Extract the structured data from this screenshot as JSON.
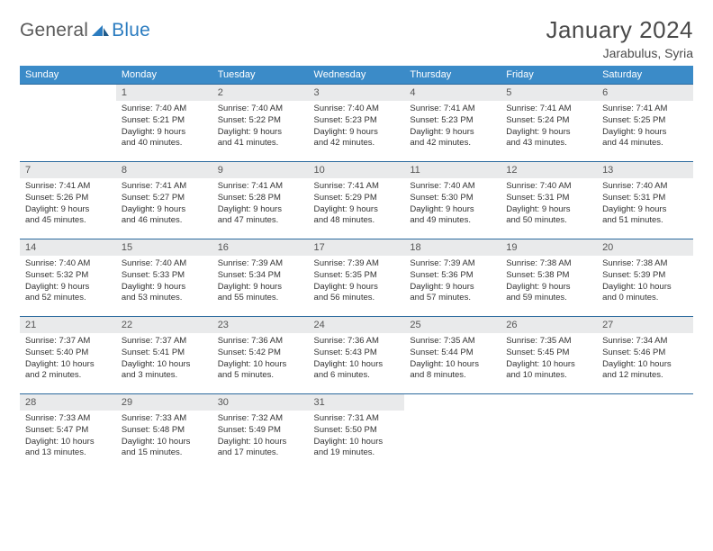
{
  "brand": {
    "part1": "General",
    "part2": "Blue"
  },
  "title": "January 2024",
  "location": "Jarabulus, Syria",
  "colors": {
    "header_bg": "#3b8bc8",
    "header_text": "#ffffff",
    "daynum_bg": "#e9eaeb",
    "row_border": "#2b6a9e",
    "brand_gray": "#5a5a5a",
    "brand_blue": "#2b7cc0",
    "text": "#333333",
    "page_bg": "#ffffff"
  },
  "typography": {
    "title_fontsize": 26,
    "location_fontsize": 14,
    "header_fontsize": 11,
    "daynum_fontsize": 11,
    "body_fontsize": 9.5
  },
  "weekdays": [
    "Sunday",
    "Monday",
    "Tuesday",
    "Wednesday",
    "Thursday",
    "Friday",
    "Saturday"
  ],
  "weeks": [
    [
      {
        "n": "",
        "lines": []
      },
      {
        "n": "1",
        "lines": [
          "Sunrise: 7:40 AM",
          "Sunset: 5:21 PM",
          "Daylight: 9 hours",
          "and 40 minutes."
        ]
      },
      {
        "n": "2",
        "lines": [
          "Sunrise: 7:40 AM",
          "Sunset: 5:22 PM",
          "Daylight: 9 hours",
          "and 41 minutes."
        ]
      },
      {
        "n": "3",
        "lines": [
          "Sunrise: 7:40 AM",
          "Sunset: 5:23 PM",
          "Daylight: 9 hours",
          "and 42 minutes."
        ]
      },
      {
        "n": "4",
        "lines": [
          "Sunrise: 7:41 AM",
          "Sunset: 5:23 PM",
          "Daylight: 9 hours",
          "and 42 minutes."
        ]
      },
      {
        "n": "5",
        "lines": [
          "Sunrise: 7:41 AM",
          "Sunset: 5:24 PM",
          "Daylight: 9 hours",
          "and 43 minutes."
        ]
      },
      {
        "n": "6",
        "lines": [
          "Sunrise: 7:41 AM",
          "Sunset: 5:25 PM",
          "Daylight: 9 hours",
          "and 44 minutes."
        ]
      }
    ],
    [
      {
        "n": "7",
        "lines": [
          "Sunrise: 7:41 AM",
          "Sunset: 5:26 PM",
          "Daylight: 9 hours",
          "and 45 minutes."
        ]
      },
      {
        "n": "8",
        "lines": [
          "Sunrise: 7:41 AM",
          "Sunset: 5:27 PM",
          "Daylight: 9 hours",
          "and 46 minutes."
        ]
      },
      {
        "n": "9",
        "lines": [
          "Sunrise: 7:41 AM",
          "Sunset: 5:28 PM",
          "Daylight: 9 hours",
          "and 47 minutes."
        ]
      },
      {
        "n": "10",
        "lines": [
          "Sunrise: 7:41 AM",
          "Sunset: 5:29 PM",
          "Daylight: 9 hours",
          "and 48 minutes."
        ]
      },
      {
        "n": "11",
        "lines": [
          "Sunrise: 7:40 AM",
          "Sunset: 5:30 PM",
          "Daylight: 9 hours",
          "and 49 minutes."
        ]
      },
      {
        "n": "12",
        "lines": [
          "Sunrise: 7:40 AM",
          "Sunset: 5:31 PM",
          "Daylight: 9 hours",
          "and 50 minutes."
        ]
      },
      {
        "n": "13",
        "lines": [
          "Sunrise: 7:40 AM",
          "Sunset: 5:31 PM",
          "Daylight: 9 hours",
          "and 51 minutes."
        ]
      }
    ],
    [
      {
        "n": "14",
        "lines": [
          "Sunrise: 7:40 AM",
          "Sunset: 5:32 PM",
          "Daylight: 9 hours",
          "and 52 minutes."
        ]
      },
      {
        "n": "15",
        "lines": [
          "Sunrise: 7:40 AM",
          "Sunset: 5:33 PM",
          "Daylight: 9 hours",
          "and 53 minutes."
        ]
      },
      {
        "n": "16",
        "lines": [
          "Sunrise: 7:39 AM",
          "Sunset: 5:34 PM",
          "Daylight: 9 hours",
          "and 55 minutes."
        ]
      },
      {
        "n": "17",
        "lines": [
          "Sunrise: 7:39 AM",
          "Sunset: 5:35 PM",
          "Daylight: 9 hours",
          "and 56 minutes."
        ]
      },
      {
        "n": "18",
        "lines": [
          "Sunrise: 7:39 AM",
          "Sunset: 5:36 PM",
          "Daylight: 9 hours",
          "and 57 minutes."
        ]
      },
      {
        "n": "19",
        "lines": [
          "Sunrise: 7:38 AM",
          "Sunset: 5:38 PM",
          "Daylight: 9 hours",
          "and 59 minutes."
        ]
      },
      {
        "n": "20",
        "lines": [
          "Sunrise: 7:38 AM",
          "Sunset: 5:39 PM",
          "Daylight: 10 hours",
          "and 0 minutes."
        ]
      }
    ],
    [
      {
        "n": "21",
        "lines": [
          "Sunrise: 7:37 AM",
          "Sunset: 5:40 PM",
          "Daylight: 10 hours",
          "and 2 minutes."
        ]
      },
      {
        "n": "22",
        "lines": [
          "Sunrise: 7:37 AM",
          "Sunset: 5:41 PM",
          "Daylight: 10 hours",
          "and 3 minutes."
        ]
      },
      {
        "n": "23",
        "lines": [
          "Sunrise: 7:36 AM",
          "Sunset: 5:42 PM",
          "Daylight: 10 hours",
          "and 5 minutes."
        ]
      },
      {
        "n": "24",
        "lines": [
          "Sunrise: 7:36 AM",
          "Sunset: 5:43 PM",
          "Daylight: 10 hours",
          "and 6 minutes."
        ]
      },
      {
        "n": "25",
        "lines": [
          "Sunrise: 7:35 AM",
          "Sunset: 5:44 PM",
          "Daylight: 10 hours",
          "and 8 minutes."
        ]
      },
      {
        "n": "26",
        "lines": [
          "Sunrise: 7:35 AM",
          "Sunset: 5:45 PM",
          "Daylight: 10 hours",
          "and 10 minutes."
        ]
      },
      {
        "n": "27",
        "lines": [
          "Sunrise: 7:34 AM",
          "Sunset: 5:46 PM",
          "Daylight: 10 hours",
          "and 12 minutes."
        ]
      }
    ],
    [
      {
        "n": "28",
        "lines": [
          "Sunrise: 7:33 AM",
          "Sunset: 5:47 PM",
          "Daylight: 10 hours",
          "and 13 minutes."
        ]
      },
      {
        "n": "29",
        "lines": [
          "Sunrise: 7:33 AM",
          "Sunset: 5:48 PM",
          "Daylight: 10 hours",
          "and 15 minutes."
        ]
      },
      {
        "n": "30",
        "lines": [
          "Sunrise: 7:32 AM",
          "Sunset: 5:49 PM",
          "Daylight: 10 hours",
          "and 17 minutes."
        ]
      },
      {
        "n": "31",
        "lines": [
          "Sunrise: 7:31 AM",
          "Sunset: 5:50 PM",
          "Daylight: 10 hours",
          "and 19 minutes."
        ]
      },
      {
        "n": "",
        "lines": []
      },
      {
        "n": "",
        "lines": []
      },
      {
        "n": "",
        "lines": []
      }
    ]
  ]
}
